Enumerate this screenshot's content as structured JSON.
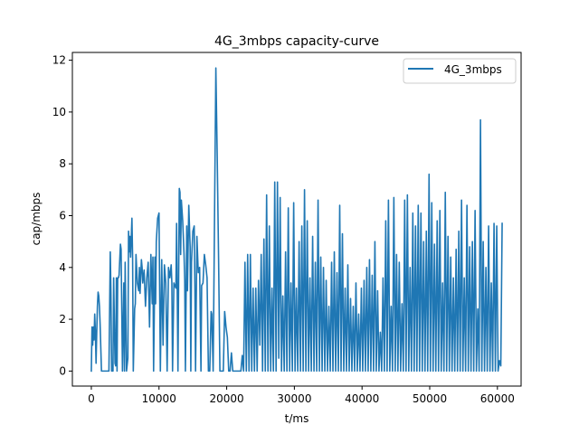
{
  "chart_data": {
    "type": "line",
    "title": "4G_3mbps capacity-curve",
    "xlabel": "t/ms",
    "ylabel": "cap/mbps",
    "xlim": [
      -2800,
      63500
    ],
    "ylim": [
      -0.58,
      12.3
    ],
    "x_ticks": [
      0,
      10000,
      20000,
      30000,
      40000,
      50000,
      60000
    ],
    "y_ticks": [
      0,
      2,
      4,
      6,
      8,
      10,
      12
    ],
    "grid": false,
    "legend_position": "top-right",
    "series": [
      {
        "name": "4G_3mbps",
        "color": "#1f77b4",
        "x": [
          0,
          100,
          200,
          300,
          400,
          500,
          600,
          700,
          800,
          900,
          1000,
          1100,
          1200,
          1300,
          1500,
          1700,
          1800,
          1900,
          2200,
          2600,
          2800,
          2900,
          3000,
          3200,
          3300,
          3500,
          3600,
          3700,
          3800,
          3900,
          4000,
          4100,
          4300,
          4400,
          4600,
          4800,
          4900,
          5000,
          5200,
          5400,
          5500,
          5600,
          5700,
          5800,
          6000,
          6100,
          6200,
          6400,
          6500,
          6600,
          6800,
          7000,
          7100,
          7200,
          7400,
          7500,
          7600,
          7800,
          8000,
          8200,
          8400,
          8600,
          8800,
          9000,
          9100,
          9200,
          9400,
          9500,
          9600,
          9800,
          10000,
          10200,
          10400,
          10600,
          10800,
          11000,
          11200,
          11400,
          11600,
          11800,
          11900,
          12000,
          12200,
          12500,
          12600,
          12800,
          13000,
          13100,
          13200,
          13300,
          13500,
          13700,
          13800,
          13900,
          14100,
          14200,
          14400,
          14600,
          14700,
          14800,
          15000,
          15200,
          15300,
          15400,
          15600,
          15800,
          16000,
          16200,
          16300,
          16500,
          16700,
          16900,
          17100,
          17300,
          17500,
          17700,
          17800,
          18000,
          18200,
          18400,
          18600,
          18800,
          19000,
          19300,
          19500,
          19700,
          19900,
          20100,
          20300,
          20500,
          20700,
          20900,
          21100,
          21300,
          21500,
          21700,
          21900,
          22100,
          22300,
          22500,
          22700,
          22900,
          23100,
          23300,
          23500,
          23700,
          23900,
          24100,
          24300,
          24500,
          24700,
          24900,
          25100,
          25300,
          25500,
          25700,
          25900,
          26100,
          26300,
          26500,
          26700,
          26900,
          27100,
          27300,
          27500,
          27700,
          27900,
          28100,
          28300,
          28500,
          28700,
          28900,
          29100,
          29300,
          29500,
          29700,
          29900,
          30100,
          30300,
          30500,
          30700,
          30900,
          31100,
          31300,
          31500,
          31700,
          31900,
          32100,
          32300,
          32500,
          32700,
          32900,
          33100,
          33300,
          33500,
          33700,
          33900,
          34100,
          34300,
          34500,
          34700,
          34900,
          35100,
          35300,
          35500,
          35700,
          35900,
          36100,
          36300,
          36500,
          36700,
          36900,
          37100,
          37300,
          37500,
          37700,
          37900,
          38100,
          38300,
          38500,
          38700,
          38900,
          39100,
          39300,
          39500,
          39700,
          39900,
          40100,
          40300,
          40500,
          40700,
          40900,
          41100,
          41300,
          41500,
          41700,
          41900,
          42100,
          42300,
          42500,
          42700,
          42900,
          43100,
          43300,
          43500,
          43700,
          43900,
          44100,
          44300,
          44500,
          44700,
          44900,
          45100,
          45300,
          45500,
          45700,
          45900,
          46100,
          46300,
          46500,
          46700,
          46900,
          47100,
          47300,
          47500,
          47700,
          47900,
          48100,
          48300,
          48500,
          48700,
          48900,
          49100,
          49300,
          49500,
          49700,
          49900,
          50100,
          50300,
          50500,
          50700,
          50900,
          51100,
          51300,
          51500,
          51700,
          51900,
          52100,
          52300,
          52500,
          52700,
          52900,
          53100,
          53300,
          53500,
          53700,
          53900,
          54100,
          54300,
          54500,
          54700,
          54900,
          55100,
          55300,
          55500,
          55700,
          55900,
          56100,
          56300,
          56500,
          56700,
          56900,
          57100,
          57300,
          57500,
          57700,
          57900,
          58100,
          58300,
          58500,
          58700,
          58900,
          59100,
          59300,
          59500,
          59700,
          59900,
          60100,
          60300,
          60500,
          60700
        ],
        "y": [
          0,
          1.7,
          1.0,
          1.7,
          1.2,
          2.2,
          1.5,
          0.3,
          1.5,
          2.5,
          3.05,
          2.9,
          2.5,
          1.8,
          0,
          0,
          0,
          0,
          0,
          0,
          4.6,
          3.0,
          0,
          0,
          3.6,
          0.3,
          0.2,
          3.6,
          0,
          3.6,
          3.6,
          3.7,
          4.9,
          4.7,
          0,
          3.4,
          0,
          4.2,
          0,
          0.5,
          5.4,
          4.6,
          5.2,
          4.4,
          5.9,
          4.4,
          0,
          2.4,
          2.6,
          4.5,
          3.4,
          3.1,
          4.0,
          3.0,
          4.3,
          4.0,
          3.4,
          3.9,
          2.5,
          3.6,
          4.2,
          1.7,
          4.5,
          2.6,
          4.4,
          0,
          4.4,
          2.6,
          5.0,
          5.9,
          6.1,
          0,
          4.3,
          1.0,
          4.1,
          3.4,
          0,
          4.0,
          3.6,
          4.1,
          3.4,
          0,
          3.4,
          3.2,
          5.7,
          0,
          7.05,
          6.9,
          4.5,
          6.6,
          5.8,
          4.5,
          3.5,
          0,
          5.6,
          3.1,
          6.4,
          4.8,
          0,
          4.2,
          5.4,
          5.6,
          3.3,
          0,
          5.2,
          3.8,
          4.0,
          0,
          3.3,
          3.4,
          4.5,
          4.1,
          3.6,
          0,
          0,
          2.3,
          2.2,
          0,
          5.8,
          11.7,
          8.3,
          4.4,
          0,
          0,
          0,
          2.3,
          1.7,
          1.3,
          0,
          0,
          0.7,
          0,
          0,
          0,
          0,
          0,
          0,
          0,
          0.6,
          0,
          4.2,
          0,
          4.5,
          0,
          4.5,
          0,
          3.2,
          0,
          3.2,
          0,
          3.5,
          1.0,
          4.5,
          0,
          5.1,
          0,
          6.8,
          0,
          5.6,
          0,
          3.2,
          0,
          7.3,
          0,
          7.3,
          0.5,
          6.7,
          0,
          2.9,
          0,
          4.6,
          0,
          6.3,
          0,
          3.4,
          0,
          6.5,
          0,
          3.2,
          0,
          5.0,
          0,
          5.6,
          0,
          7.0,
          0,
          5.8,
          0,
          3.6,
          0,
          5.2,
          0,
          4.2,
          0,
          6.6,
          0,
          4.4,
          0,
          4.0,
          0,
          3.5,
          0,
          2.5,
          0,
          4.2,
          0,
          4.6,
          0,
          3.8,
          0,
          6.4,
          0,
          5.3,
          0,
          3.2,
          0,
          4.1,
          0,
          2.8,
          0,
          2.5,
          0,
          3.4,
          0,
          2.2,
          0,
          3.2,
          0,
          3.5,
          0,
          4.0,
          0,
          4.3,
          0,
          3.7,
          0,
          5.0,
          0,
          3.1,
          0,
          1.5,
          0,
          3.6,
          0,
          5.8,
          0,
          6.6,
          0,
          2.5,
          0,
          6.7,
          0,
          4.5,
          0,
          4.2,
          0,
          2.6,
          0,
          6.6,
          0,
          6.8,
          0,
          4.0,
          0,
          6.1,
          0,
          5.6,
          0,
          6.4,
          0,
          6.1,
          0,
          5.0,
          0,
          5.4,
          0,
          7.6,
          0,
          6.5,
          0,
          4.9,
          0,
          5.8,
          0,
          6.2,
          0,
          3.4,
          0,
          6.9,
          0,
          5.2,
          0,
          4.4,
          0,
          3.6,
          0,
          4.7,
          0,
          5.4,
          0,
          6.6,
          0,
          3.6,
          0,
          6.4,
          0,
          4.8,
          0,
          5.0,
          0,
          6.2,
          0,
          2.4,
          0,
          9.7,
          0,
          5.0,
          0,
          4.0,
          0,
          5.6,
          0,
          3.4,
          0,
          5.7,
          0,
          5.6,
          0,
          0.4,
          0.2,
          5.7
        ]
      }
    ]
  }
}
